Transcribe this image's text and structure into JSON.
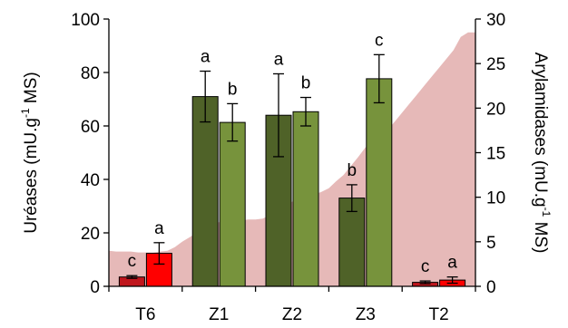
{
  "chart_data": {
    "type": "bar",
    "categories": [
      "T6",
      "Z1",
      "Z2",
      "Z3",
      "T2"
    ],
    "left_axis": {
      "title_main": "Uréases (mU.g",
      "title_sup": "-1",
      "title_end": " MS)",
      "ylim": [
        0,
        100
      ],
      "ticks": [
        "0",
        "20",
        "40",
        "60",
        "80",
        "100"
      ]
    },
    "right_axis": {
      "title_main": "Arylamidases (mU.g",
      "title_sup": "-1",
      "title_end": " MS)",
      "ylim": [
        0,
        30
      ],
      "ticks": [
        "0",
        "5",
        "10",
        "15",
        "20",
        "25",
        "30"
      ]
    },
    "series": [
      {
        "axis": "left",
        "values": [
          3.5,
          71,
          64,
          33,
          1.5
        ],
        "errors": [
          0.5,
          9.5,
          15.5,
          5,
          0.5
        ],
        "letters": [
          "c",
          "a",
          "a",
          "b",
          "c"
        ],
        "colors": [
          "#c0161d",
          "#4f6228",
          "#4f6228",
          "#4f6228",
          "#c0161d"
        ]
      },
      {
        "axis": "right",
        "values": [
          3.7,
          18.4,
          19.6,
          23.3,
          0.7
        ],
        "errors": [
          1.2,
          2.1,
          1.6,
          2.7,
          0.35
        ],
        "letters": [
          "a",
          "b",
          "b",
          "c",
          "a"
        ],
        "colors": [
          "#ff0000",
          "#77933c",
          "#77933c",
          "#77933c",
          "#ff0000"
        ]
      }
    ],
    "background_area": {
      "color": "#e6b9b8",
      "y_right_units": [
        4.0,
        3.9,
        3.9,
        3.9,
        3.8,
        3.8,
        3.8,
        3.9,
        4.0,
        4.4,
        5.0,
        5.5,
        6.0,
        6.5,
        7.0,
        7.2,
        7.3,
        7.4,
        7.4,
        7.5,
        7.5,
        7.6,
        8.0,
        8.5,
        9.0,
        9.5,
        9.8,
        10.0,
        10.3,
        10.6,
        11.0,
        11.8,
        12.5,
        13.5,
        14.5,
        15.6,
        16.0,
        16.6,
        17.5,
        18.5,
        19.5,
        20.5,
        21.5,
        22.5,
        23.5,
        24.5,
        25.5,
        26.5,
        28.0,
        28.5,
        28.5
      ]
    },
    "grid": false
  }
}
